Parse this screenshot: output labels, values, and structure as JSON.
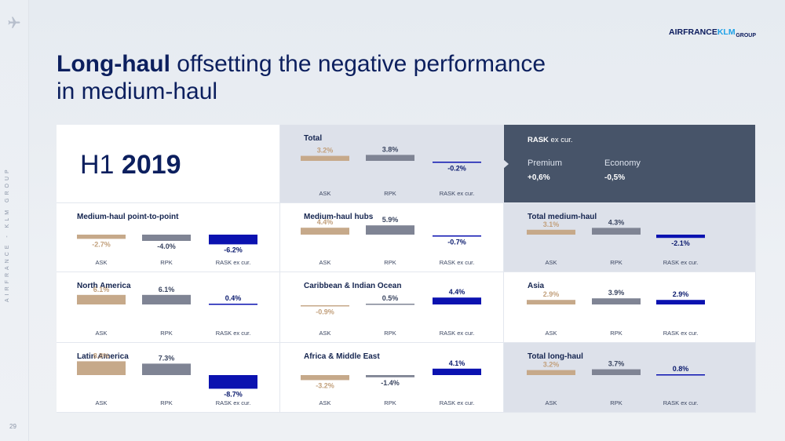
{
  "header": {
    "title_bold": "Long-haul",
    "title_rest": " offsetting the negative performance",
    "title_line2": "in medium-haul",
    "logo_main": "AIRFRANCE",
    "logo_klm": "KLM",
    "logo_sub": "GROUP"
  },
  "sidebar": {
    "vertical_text": "AIRFRANCE - KLM GROUP",
    "page_number": "29"
  },
  "h1": {
    "prefix": "H1 ",
    "year": "2019"
  },
  "rask_panel": {
    "title_bold": "RASK",
    "title_rest": " ex cur.",
    "premium_label": "Premium",
    "premium_value": "+0,6%",
    "economy_label": "Economy",
    "economy_value": "-0,5%"
  },
  "colors": {
    "ask": "#c6a98a",
    "rpk": "#7f8494",
    "rask": "#0b12b0",
    "ask_label": "#c2a07c",
    "rpk_label": "#3a4560",
    "rask_label": "#0a1a6e"
  },
  "chart_data": [
    {
      "type": "bar",
      "title": "Total",
      "categories": [
        "ASK",
        "RPK",
        "RASK ex cur."
      ],
      "values": [
        3.2,
        3.8,
        -0.2
      ],
      "labels": [
        "3.2%",
        "3.8%",
        "-0.2%"
      ]
    },
    {
      "type": "bar",
      "title": "Medium-haul point-to-point",
      "categories": [
        "ASK",
        "RPK",
        "RASK ex cur."
      ],
      "values": [
        -2.7,
        -4.0,
        -6.2
      ],
      "labels": [
        "-2.7%",
        "-4.0%",
        "-6.2%"
      ]
    },
    {
      "type": "bar",
      "title": "Medium-haul hubs",
      "categories": [
        "ASK",
        "RPK",
        "RASK ex cur."
      ],
      "values": [
        4.4,
        5.9,
        -0.7
      ],
      "labels": [
        "4.4%",
        "5.9%",
        "-0.7%"
      ]
    },
    {
      "type": "bar",
      "title": "Total medium-haul",
      "categories": [
        "ASK",
        "RPK",
        "RASK ex cur."
      ],
      "values": [
        3.1,
        4.3,
        -2.1
      ],
      "labels": [
        "3.1%",
        "4.3%",
        "-2.1%"
      ]
    },
    {
      "type": "bar",
      "title": "North America",
      "categories": [
        "ASK",
        "RPK",
        "RASK ex cur."
      ],
      "values": [
        6.1,
        6.1,
        0.4
      ],
      "labels": [
        "6.1%",
        "6.1%",
        "0.4%"
      ]
    },
    {
      "type": "bar",
      "title": "Caribbean & Indian Ocean",
      "categories": [
        "ASK",
        "RPK",
        "RASK ex cur."
      ],
      "values": [
        -0.9,
        0.5,
        4.4
      ],
      "labels": [
        "-0.9%",
        "0.5%",
        "4.4%"
      ]
    },
    {
      "type": "bar",
      "title": "Asia",
      "categories": [
        "ASK",
        "RPK",
        "RASK ex cur."
      ],
      "values": [
        2.9,
        3.9,
        2.9
      ],
      "labels": [
        "2.9%",
        "3.9%",
        "2.9%"
      ]
    },
    {
      "type": "bar",
      "title": "Latin America",
      "categories": [
        "ASK",
        "RPK",
        "RASK ex cur."
      ],
      "values": [
        8.8,
        7.3,
        -8.7
      ],
      "labels": [
        "8.8%",
        "7.3%",
        "-8.7%"
      ]
    },
    {
      "type": "bar",
      "title": "Africa & Middle East",
      "categories": [
        "ASK",
        "RPK",
        "RASK ex cur."
      ],
      "values": [
        -3.2,
        -1.4,
        4.1
      ],
      "labels": [
        "-3.2%",
        "-1.4%",
        "4.1%"
      ]
    },
    {
      "type": "bar",
      "title": "Total long-haul",
      "categories": [
        "ASK",
        "RPK",
        "RASK ex cur."
      ],
      "values": [
        3.2,
        3.7,
        0.8
      ],
      "labels": [
        "3.2%",
        "3.7%",
        "0.8%"
      ]
    }
  ]
}
